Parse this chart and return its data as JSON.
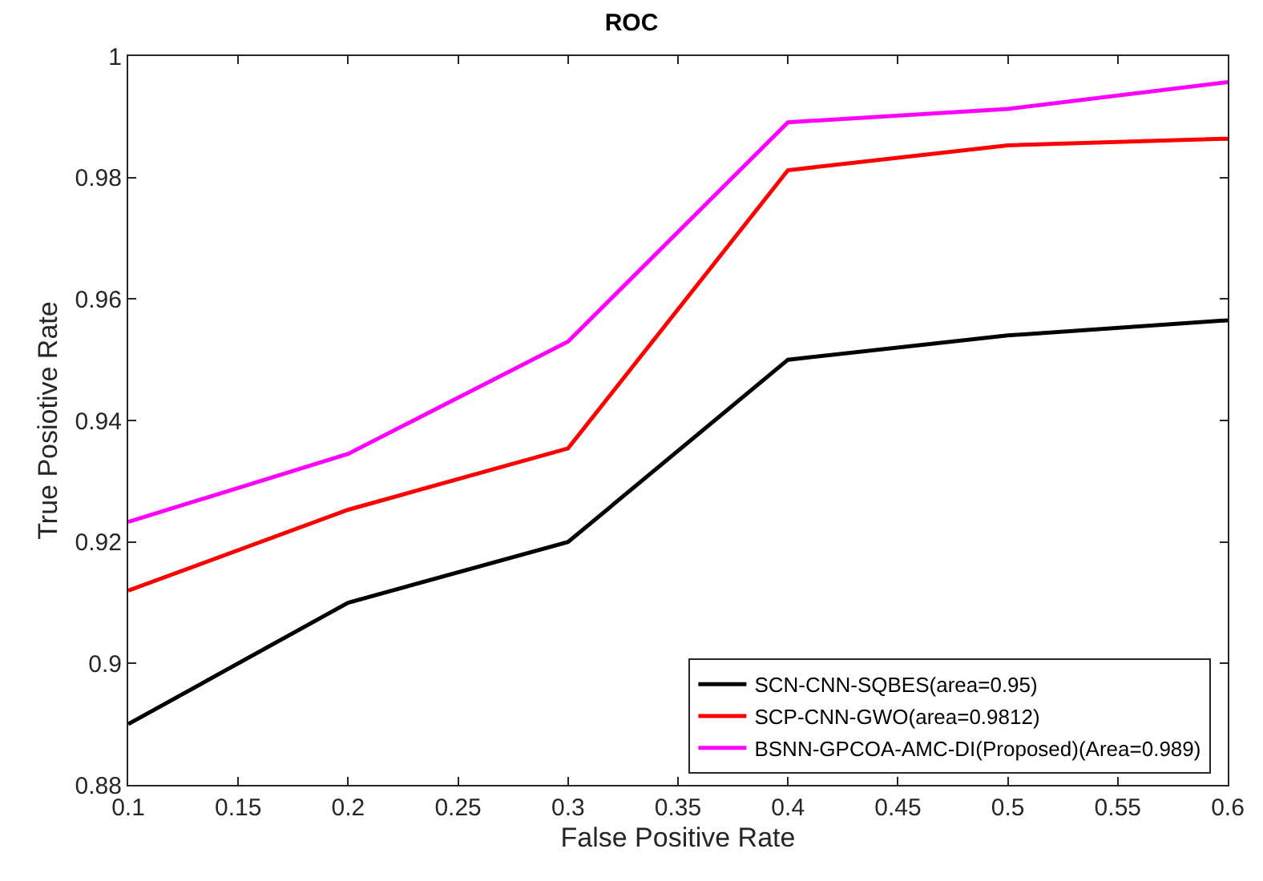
{
  "chart_data": {
    "type": "line",
    "title": "ROC",
    "xlabel": "False Positive Rate",
    "ylabel": "True Posiotive Rate",
    "x": [
      0.1,
      0.2,
      0.3,
      0.4,
      0.5,
      0.6
    ],
    "series": [
      {
        "name": "SCN-CNN-SQBES(area=0.95)",
        "color": "#000000",
        "values": [
          0.89,
          0.91,
          0.92,
          0.95,
          0.954,
          0.9565
        ]
      },
      {
        "name": "SCP-CNN-GWO(area=0.9812)",
        "color": "#ff0000",
        "values": [
          0.912,
          0.9253,
          0.9354,
          0.9812,
          0.9853,
          0.9864
        ]
      },
      {
        "name": "BSNN-GPCOA-AMC-DI(Proposed)(Area=0.989)",
        "color": "#ff00ff",
        "values": [
          0.9233,
          0.9345,
          0.953,
          0.9891,
          0.9913,
          0.9957
        ]
      }
    ],
    "xlim": [
      0.1,
      0.6
    ],
    "xticks": [
      0.1,
      0.15,
      0.2,
      0.25,
      0.3,
      0.35,
      0.4,
      0.45,
      0.5,
      0.55,
      0.6
    ],
    "ylim": [
      0.88,
      1
    ],
    "yticks": [
      0.88,
      0.9,
      0.92,
      0.94,
      0.96,
      0.98,
      1
    ],
    "legend": "bottom right",
    "marker": "none",
    "line_style": "solid"
  }
}
